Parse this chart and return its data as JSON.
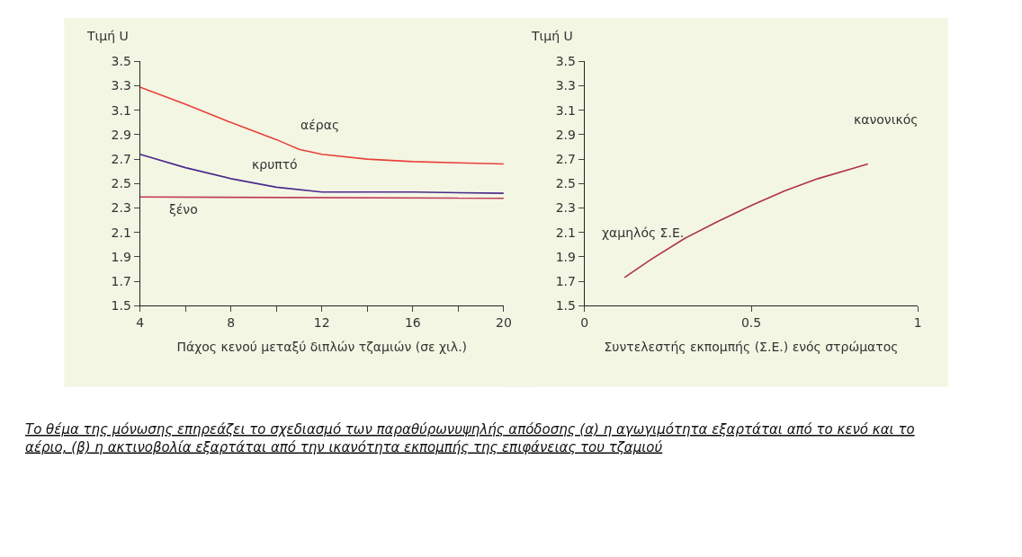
{
  "chart_data": [
    {
      "type": "line",
      "ylabel": "Τιμή U",
      "xlabel": "Πάχος κενού μεταξύ διπλών τζαμιών (σε χιλ.)",
      "xlim": [
        4,
        20
      ],
      "xticks": [
        4,
        {
          "value": 6,
          "label": null
        },
        8,
        {
          "value": 10,
          "label": null
        },
        12,
        {
          "value": 14,
          "label": null
        },
        16,
        {
          "value": 18,
          "label": null
        },
        20
      ],
      "ylim": [
        1.5,
        3.5
      ],
      "yticks": [
        1.5,
        1.7,
        1.9,
        2.1,
        2.3,
        2.5,
        2.7,
        2.9,
        3.1,
        3.3,
        3.5
      ],
      "grid": false,
      "legend": false,
      "marker": "none",
      "line_style": "solid",
      "series": [
        {
          "name": "αέρας",
          "color": "#e8413a",
          "x": [
            4,
            6,
            8,
            10,
            11,
            12,
            14,
            16,
            18,
            20
          ],
          "values": [
            3.29,
            3.15,
            3.0,
            2.86,
            2.78,
            2.74,
            2.7,
            2.68,
            2.67,
            2.66
          ]
        },
        {
          "name": "κρυπτό",
          "color": "#4b2a8a",
          "x": [
            4,
            6,
            8,
            10,
            12,
            14,
            16,
            20
          ],
          "values": [
            2.74,
            2.63,
            2.54,
            2.47,
            2.43,
            2.43,
            2.43,
            2.42
          ]
        },
        {
          "name": "ξένο",
          "color": "#c03a5a",
          "x": [
            4,
            20
          ],
          "values": [
            2.39,
            2.38
          ]
        }
      ],
      "annotations": [
        "Το θέμα της μόνωσης επηρεάζει το σχεδιασμό των παραθύρωνυψηλής απόδοσης (α) η αγωγιμότητα εξαρτάται από το κενό και το αέριο, (β) η ακτινοβολία εξαρτάται από την ικανότητα εκπομπής της επιφάνειας του τζαμιού"
      ]
    },
    {
      "type": "line",
      "ylabel": "Τιμή U",
      "xlabel": "Συντελεστής εκπομπής (Σ.Ε.) ενός στρώματος",
      "xlim": [
        0,
        1
      ],
      "xticks": [
        0,
        0.5,
        1
      ],
      "ylim": [
        1.5,
        3.5
      ],
      "yticks": [
        1.5,
        1.7,
        1.9,
        2.1,
        2.3,
        2.5,
        2.7,
        2.9,
        3.1,
        3.3,
        3.5
      ],
      "grid": false,
      "legend": false,
      "marker": "none",
      "line_style": "solid",
      "series": [
        {
          "color": "#b0304a",
          "x": [
            0.12,
            0.2,
            0.3,
            0.4,
            0.5,
            0.6,
            0.7,
            0.8,
            0.85
          ],
          "values": [
            1.73,
            1.88,
            2.05,
            2.19,
            2.32,
            2.44,
            2.54,
            2.62,
            2.66
          ]
        }
      ],
      "annotations": [
        {
          "text": "χαμηλός Σ.Ε.",
          "x": 0.12,
          "y": 1.73
        },
        {
          "text": "κανονικός",
          "x": 0.85,
          "y": 2.66
        }
      ]
    }
  ]
}
